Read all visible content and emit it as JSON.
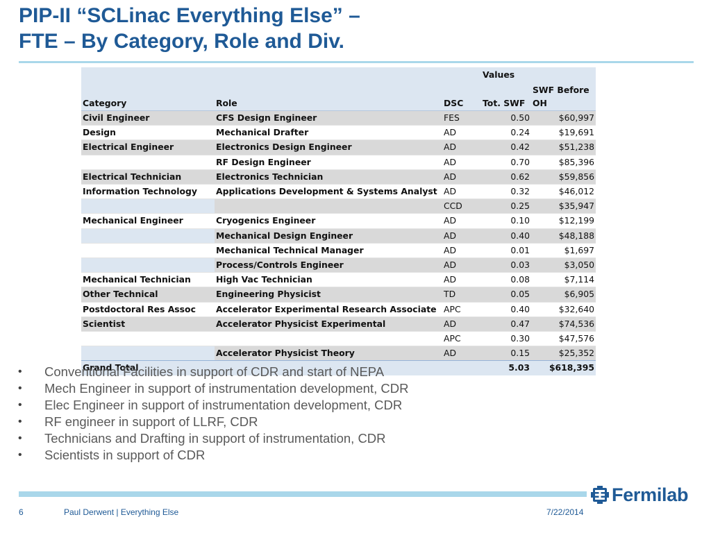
{
  "slide": {
    "title_line1": "PIP-II “SCLinac Everything Else” –",
    "title_line2": "FTE – By Category, Role and Div."
  },
  "table": {
    "header_group": "Values",
    "columns": {
      "category": "Category",
      "role": "Role",
      "dsc": "DSC",
      "tot_swf": "Tot. SWF",
      "swf_before_oh": "SWF Before OH"
    },
    "rows": [
      {
        "category": "Civil Engineer",
        "role": "CFS Design Engineer",
        "dsc": "FES",
        "tot_swf": "0.50",
        "swf_before_oh": "$60,997"
      },
      {
        "category": "Design",
        "role": "Mechanical Drafter",
        "dsc": "AD",
        "tot_swf": "0.24",
        "swf_before_oh": "$19,691"
      },
      {
        "category": "Electrical Engineer",
        "role": "Electronics Design Engineer",
        "dsc": "AD",
        "tot_swf": "0.42",
        "swf_before_oh": "$51,238"
      },
      {
        "category": "",
        "role": "RF Design Engineer",
        "dsc": "AD",
        "tot_swf": "0.70",
        "swf_before_oh": "$85,396"
      },
      {
        "category": "Electrical Technician",
        "role": "Electronics Technician",
        "dsc": "AD",
        "tot_swf": "0.62",
        "swf_before_oh": "$59,856"
      },
      {
        "category": "Information Technology",
        "role": "Applications Development & Systems Analyst",
        "dsc": "AD",
        "tot_swf": "0.32",
        "swf_before_oh": "$46,012"
      },
      {
        "category": "",
        "role": "",
        "dsc": "CCD",
        "tot_swf": "0.25",
        "swf_before_oh": "$35,947"
      },
      {
        "category": "Mechanical Engineer",
        "role": "Cryogenics Engineer",
        "dsc": "AD",
        "tot_swf": "0.10",
        "swf_before_oh": "$12,199"
      },
      {
        "category": "",
        "role": "Mechanical Design Engineer",
        "dsc": "AD",
        "tot_swf": "0.40",
        "swf_before_oh": "$48,188"
      },
      {
        "category": "",
        "role": "Mechanical Technical Manager",
        "dsc": "AD",
        "tot_swf": "0.01",
        "swf_before_oh": "$1,697"
      },
      {
        "category": "",
        "role": "Process/Controls Engineer",
        "dsc": "AD",
        "tot_swf": "0.03",
        "swf_before_oh": "$3,050"
      },
      {
        "category": "Mechanical Technician",
        "role": "High Vac Technician",
        "dsc": "AD",
        "tot_swf": "0.08",
        "swf_before_oh": "$7,114"
      },
      {
        "category": "Other Technical",
        "role": "Engineering Physicist",
        "dsc": "TD",
        "tot_swf": "0.05",
        "swf_before_oh": "$6,905"
      },
      {
        "category": "Postdoctoral Res Assoc",
        "role": "Accelerator Experimental Research Associate",
        "dsc": "APC",
        "tot_swf": "0.40",
        "swf_before_oh": "$32,640"
      },
      {
        "category": "Scientist",
        "role": "Accelerator Physicist Experimental",
        "dsc": "AD",
        "tot_swf": "0.47",
        "swf_before_oh": "$74,536"
      },
      {
        "category": "",
        "role": "",
        "dsc": "APC",
        "tot_swf": "0.30",
        "swf_before_oh": "$47,576"
      },
      {
        "category": "",
        "role": "Accelerator Physicist Theory",
        "dsc": "AD",
        "tot_swf": "0.15",
        "swf_before_oh": "$25,352"
      }
    ],
    "grand_total": {
      "label": "Grand Total",
      "tot_swf": "5.03",
      "swf_before_oh": "$618,395"
    }
  },
  "bullets": [
    "Conventional Facilities in support of CDR and start of NEPA",
    "Mech Engineer in support of instrumentation development, CDR",
    "Elec Engineer in support of instrumentation development, CDR",
    "RF engineer in support of LLRF, CDR",
    "Technicians and Drafting in support of instrumentation, CDR",
    "Scientists in support of CDR"
  ],
  "bullet_marker": "•",
  "footer": {
    "page_number": "6",
    "author": "Paul Derwent | Everything Else",
    "date": "7/22/2014",
    "logo_text": "Fermilab",
    "logo_icon": "fermilab-logo-icon"
  },
  "colors": {
    "title": "#1f5a96",
    "accent_rule": "#a9d7ea",
    "table_header": "#dce6f1",
    "table_band": "#d9d9d9",
    "bullet_text": "#595959"
  }
}
